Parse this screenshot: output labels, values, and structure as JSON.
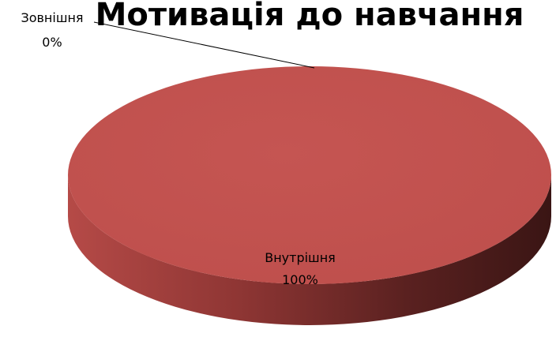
{
  "chart_data": {
    "type": "pie",
    "title": "Мотивація до навчання",
    "categories": [
      "Внутрішня",
      "Зовнішня"
    ],
    "values": [
      100,
      0
    ],
    "value_labels": [
      "100%",
      "0%"
    ],
    "legend": "none",
    "three_d": true,
    "colors": {
      "slice_top": "#C0504D",
      "side_light": "#B54A47",
      "side_dark": "#3A1514",
      "leader_line": "#000000"
    }
  }
}
